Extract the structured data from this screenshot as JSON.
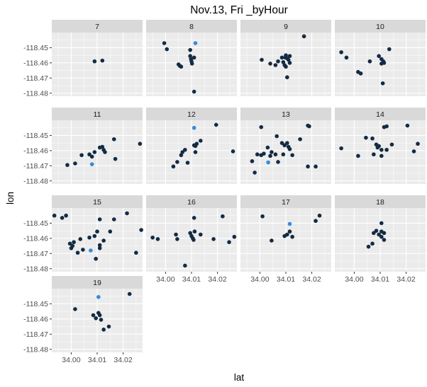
{
  "chart_data": {
    "type": "scatter",
    "title": "Nov.13, Fri _byHour",
    "xlabel": "lat",
    "ylabel": "lon",
    "xlim": [
      33.9925,
      34.0275
    ],
    "ylim": [
      -118.482,
      -118.44
    ],
    "x_ticks": [
      34.0,
      34.01,
      34.02
    ],
    "x_tick_labels": [
      "34.00",
      "34.01",
      "34.02"
    ],
    "y_ticks": [
      -118.45,
      -118.46,
      -118.47,
      -118.48
    ],
    "y_tick_labels": [
      "-118.45",
      "-118.46",
      "-118.47",
      "-118.48"
    ],
    "grid": true,
    "facet_columns": 4,
    "colors": {
      "panel_background": "#ebebeb",
      "strip_background": "#d9d9d9",
      "grid_major": "#ffffff",
      "point_dark": "#132b43",
      "point_highlight": "#3a8ad6"
    },
    "panels": [
      {
        "label": "7",
        "points": [
          [
            34.009,
            -118.459
          ],
          [
            34.012,
            -118.4585
          ]
        ]
      },
      {
        "label": "8",
        "points": [
          [
            33.9995,
            -118.447
          ],
          [
            34.0005,
            -118.451
          ],
          [
            34.005,
            -118.461
          ],
          [
            34.0055,
            -118.462
          ],
          [
            34.006,
            -118.4625
          ],
          [
            34.0095,
            -118.4555
          ],
          [
            34.0098,
            -118.4575
          ],
          [
            34.01,
            -118.459
          ],
          [
            34.0102,
            -118.4605
          ],
          [
            34.0095,
            -118.4515
          ],
          [
            34.011,
            -118.4565
          ],
          [
            34.011,
            -118.479
          ],
          [
            34.0115,
            -118.447,
            "h"
          ]
        ]
      },
      {
        "label": "9",
        "points": [
          [
            34.0007,
            -118.458
          ],
          [
            34.004,
            -118.4605
          ],
          [
            34.006,
            -118.4615
          ],
          [
            34.007,
            -118.459
          ],
          [
            34.0085,
            -118.4565
          ],
          [
            34.009,
            -118.4595
          ],
          [
            34.0095,
            -118.4615
          ],
          [
            34.0098,
            -118.4565
          ],
          [
            34.01,
            -118.455
          ],
          [
            34.0105,
            -118.457
          ],
          [
            34.0115,
            -118.4555
          ],
          [
            34.011,
            -118.458
          ],
          [
            34.0115,
            -118.46
          ],
          [
            34.01,
            -118.4625
          ],
          [
            34.0105,
            -118.4695
          ],
          [
            34.017,
            -118.4425
          ]
        ]
      },
      {
        "label": "10",
        "points": [
          [
            33.995,
            -118.453
          ],
          [
            33.997,
            -118.4565
          ],
          [
            34.0015,
            -118.466
          ],
          [
            34.0025,
            -118.467
          ],
          [
            34.006,
            -118.459
          ],
          [
            34.0095,
            -118.4555
          ],
          [
            34.0105,
            -118.4575
          ],
          [
            34.0112,
            -118.459
          ],
          [
            34.0115,
            -118.46
          ],
          [
            34.0105,
            -118.4605
          ],
          [
            34.0135,
            -118.451
          ],
          [
            34.011,
            -118.4735
          ]
        ]
      },
      {
        "label": "11",
        "points": [
          [
            33.9985,
            -118.4695
          ],
          [
            34.0015,
            -118.4685
          ],
          [
            34.004,
            -118.463
          ],
          [
            34.007,
            -118.4625
          ],
          [
            34.008,
            -118.464
          ],
          [
            34.009,
            -118.461
          ],
          [
            34.011,
            -118.458
          ],
          [
            34.012,
            -118.4575
          ],
          [
            34.0125,
            -118.4595
          ],
          [
            34.013,
            -118.461
          ],
          [
            34.0165,
            -118.4525
          ],
          [
            34.017,
            -118.4655
          ],
          [
            34.0265,
            -118.4555
          ],
          [
            34.008,
            -118.469,
            "h"
          ]
        ]
      },
      {
        "label": "12",
        "points": [
          [
            34.003,
            -118.4705
          ],
          [
            34.0045,
            -118.4675
          ],
          [
            34.006,
            -118.463
          ],
          [
            34.0065,
            -118.461
          ],
          [
            34.0075,
            -118.4595
          ],
          [
            34.0085,
            -118.468
          ],
          [
            34.011,
            -118.4565
          ],
          [
            34.0115,
            -118.457
          ],
          [
            34.012,
            -118.4555
          ],
          [
            34.0135,
            -118.4535
          ],
          [
            34.0115,
            -118.461
          ],
          [
            34.0195,
            -118.443
          ],
          [
            34.026,
            -118.4605
          ],
          [
            34.011,
            -118.445,
            "h"
          ]
        ]
      },
      {
        "label": "13",
        "points": [
          [
            33.997,
            -118.467
          ],
          [
            33.998,
            -118.4745
          ],
          [
            33.999,
            -118.4625
          ],
          [
            34.0005,
            -118.463
          ],
          [
            34.0015,
            -118.462
          ],
          [
            34.003,
            -118.458
          ],
          [
            34.004,
            -118.4635
          ],
          [
            34.0045,
            -118.461
          ],
          [
            34.006,
            -118.4625
          ],
          [
            34.007,
            -118.4675
          ],
          [
            34.0065,
            -118.4505
          ],
          [
            34.0085,
            -118.455
          ],
          [
            34.0095,
            -118.4565
          ],
          [
            34.0105,
            -118.455
          ],
          [
            34.011,
            -118.4575
          ],
          [
            34.0115,
            -118.459
          ],
          [
            34.009,
            -118.4625
          ],
          [
            34.0125,
            -118.463
          ],
          [
            34.0155,
            -118.4525
          ],
          [
            34.0185,
            -118.4435
          ],
          [
            34.019,
            -118.444
          ],
          [
            34.0185,
            -118.4705
          ],
          [
            34.0215,
            -118.4705
          ],
          [
            34.0005,
            -118.4445
          ],
          [
            34.0032,
            -118.4678,
            "h"
          ]
        ]
      },
      {
        "label": "14",
        "points": [
          [
            33.995,
            -118.4585
          ],
          [
            34.0015,
            -118.4635
          ],
          [
            34.0045,
            -118.4515
          ],
          [
            34.007,
            -118.452
          ],
          [
            34.0075,
            -118.4625
          ],
          [
            34.0085,
            -118.456
          ],
          [
            34.009,
            -118.458
          ],
          [
            34.0095,
            -118.457
          ],
          [
            34.0105,
            -118.4595
          ],
          [
            34.0115,
            -118.4445
          ],
          [
            34.0125,
            -118.444
          ],
          [
            34.0105,
            -118.4635
          ],
          [
            34.0125,
            -118.4595
          ],
          [
            34.0145,
            -118.456
          ],
          [
            34.0205,
            -118.4435
          ],
          [
            34.023,
            -118.4605
          ],
          [
            34.0245,
            -118.4555
          ]
        ]
      },
      {
        "label": "15",
        "points": [
          [
            33.9935,
            -118.445
          ],
          [
            33.9965,
            -118.4465
          ],
          [
            33.998,
            -118.445
          ],
          [
            33.9995,
            -118.4635
          ],
          [
            34.0,
            -118.4665
          ],
          [
            34.0005,
            -118.465
          ],
          [
            34.001,
            -118.4625
          ],
          [
            34.0025,
            -118.4695
          ],
          [
            34.0035,
            -118.4605
          ],
          [
            34.0045,
            -118.4675
          ],
          [
            34.007,
            -118.4595
          ],
          [
            34.009,
            -118.4585
          ],
          [
            34.0095,
            -118.4735
          ],
          [
            34.01,
            -118.4555
          ],
          [
            34.011,
            -118.4665
          ],
          [
            34.011,
            -118.4645
          ],
          [
            34.0125,
            -118.4615
          ],
          [
            34.011,
            -118.4475
          ],
          [
            34.015,
            -118.4555
          ],
          [
            34.0165,
            -118.4475
          ],
          [
            34.0215,
            -118.4435
          ],
          [
            34.025,
            -118.4695
          ],
          [
            34.027,
            -118.4545
          ],
          [
            34.0075,
            -118.468,
            "h"
          ]
        ]
      },
      {
        "label": "16",
        "points": [
          [
            33.995,
            -118.4595
          ],
          [
            33.997,
            -118.4605
          ],
          [
            34.004,
            -118.4575
          ],
          [
            34.0045,
            -118.4605
          ],
          [
            34.0075,
            -118.478
          ],
          [
            34.0095,
            -118.4565
          ],
          [
            34.01,
            -118.4585
          ],
          [
            34.0105,
            -118.46
          ],
          [
            34.0108,
            -118.461
          ],
          [
            34.0112,
            -118.4555
          ],
          [
            34.011,
            -118.4465
          ],
          [
            34.0135,
            -118.4575
          ],
          [
            34.0185,
            -118.4605
          ],
          [
            34.022,
            -118.4455
          ],
          [
            34.0245,
            -118.4625
          ],
          [
            34.0265,
            -118.459
          ]
        ]
      },
      {
        "label": "17",
        "points": [
          [
            34.001,
            -118.4455
          ],
          [
            34.0045,
            -118.4615
          ],
          [
            34.0095,
            -118.4585
          ],
          [
            34.0105,
            -118.4575
          ],
          [
            34.0115,
            -118.4555
          ],
          [
            34.0125,
            -118.459
          ],
          [
            34.0215,
            -118.4485
          ],
          [
            34.023,
            -118.445
          ],
          [
            34.0115,
            -118.4505,
            "h"
          ]
        ]
      },
      {
        "label": "18",
        "points": [
          [
            34.0055,
            -118.4655
          ],
          [
            34.007,
            -118.4635
          ],
          [
            34.0075,
            -118.4565
          ],
          [
            34.0085,
            -118.455
          ],
          [
            34.0095,
            -118.4575
          ],
          [
            34.0105,
            -118.4555
          ],
          [
            34.0115,
            -118.4565
          ],
          [
            34.0105,
            -118.459
          ],
          [
            34.0115,
            -118.461
          ],
          [
            34.0105,
            -118.45
          ]
        ]
      },
      {
        "label": "19",
        "points": [
          [
            34.0015,
            -118.4535
          ],
          [
            34.0085,
            -118.4575
          ],
          [
            34.0095,
            -118.4595
          ],
          [
            34.0105,
            -118.456
          ],
          [
            34.011,
            -118.4575
          ],
          [
            34.0115,
            -118.4605
          ],
          [
            34.0125,
            -118.467
          ],
          [
            34.0145,
            -118.465
          ],
          [
            34.0225,
            -118.4435
          ],
          [
            34.0105,
            -118.4455,
            "h"
          ]
        ]
      }
    ]
  }
}
